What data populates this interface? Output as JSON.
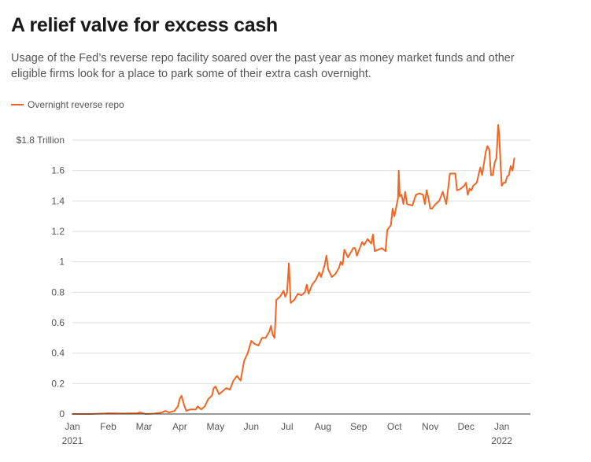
{
  "header": {
    "title": "A relief valve for excess cash",
    "subtitle": "Usage of the Fed’s reverse repo facility soared over the past year as money market funds and other eligible firms look for a place to park some of their extra cash overnight."
  },
  "legend": {
    "label": "Overnight reverse repo"
  },
  "colors": {
    "series": "#f26522",
    "grid": "#dedede",
    "axis": "#333333",
    "text": "#555555"
  },
  "chart_data": {
    "type": "line",
    "title": "A relief valve for excess cash",
    "xlabel": "",
    "ylabel": "",
    "ylim": [
      0,
      1.8
    ],
    "xlim_month_index": [
      0,
      12.35
    ],
    "y_ticks": [
      {
        "value": 0,
        "label": "0"
      },
      {
        "value": 0.2,
        "label": "0.2"
      },
      {
        "value": 0.4,
        "label": "0.4"
      },
      {
        "value": 0.6,
        "label": "0.6"
      },
      {
        "value": 0.8,
        "label": "0.8"
      },
      {
        "value": 1.0,
        "label": "1"
      },
      {
        "value": 1.2,
        "label": "1.2"
      },
      {
        "value": 1.4,
        "label": "1.4"
      },
      {
        "value": 1.6,
        "label": "1.6"
      },
      {
        "value": 1.8,
        "label": "$1.8 Trillion"
      }
    ],
    "x_ticks": [
      {
        "value": 0,
        "label": "Jan",
        "sub": "2021"
      },
      {
        "value": 1,
        "label": "Feb",
        "sub": ""
      },
      {
        "value": 2,
        "label": "Mar",
        "sub": ""
      },
      {
        "value": 3,
        "label": "Apr",
        "sub": ""
      },
      {
        "value": 4,
        "label": "May",
        "sub": ""
      },
      {
        "value": 5,
        "label": "Jun",
        "sub": ""
      },
      {
        "value": 6,
        "label": "Jul",
        "sub": ""
      },
      {
        "value": 7,
        "label": "Aug",
        "sub": ""
      },
      {
        "value": 8,
        "label": "Sep",
        "sub": ""
      },
      {
        "value": 9,
        "label": "Oct",
        "sub": ""
      },
      {
        "value": 10,
        "label": "Nov",
        "sub": ""
      },
      {
        "value": 11,
        "label": "Dec",
        "sub": ""
      },
      {
        "value": 12,
        "label": "Jan",
        "sub": "2022"
      }
    ],
    "series": [
      {
        "name": "Overnight reverse repo",
        "unit": "trillion USD",
        "x_unit": "months since Jan 1, 2021",
        "points": [
          [
            0.0,
            0.0
          ],
          [
            0.5,
            0.0
          ],
          [
            0.9,
            0.003
          ],
          [
            1.0,
            0.005
          ],
          [
            1.4,
            0.003
          ],
          [
            1.8,
            0.005
          ],
          [
            1.9,
            0.01
          ],
          [
            2.05,
            0.0
          ],
          [
            2.3,
            0.003
          ],
          [
            2.5,
            0.01
          ],
          [
            2.6,
            0.02
          ],
          [
            2.7,
            0.01
          ],
          [
            2.85,
            0.02
          ],
          [
            2.95,
            0.05
          ],
          [
            3.0,
            0.1
          ],
          [
            3.05,
            0.12
          ],
          [
            3.12,
            0.06
          ],
          [
            3.18,
            0.02
          ],
          [
            3.3,
            0.03
          ],
          [
            3.45,
            0.03
          ],
          [
            3.5,
            0.05
          ],
          [
            3.6,
            0.03
          ],
          [
            3.7,
            0.05
          ],
          [
            3.8,
            0.1
          ],
          [
            3.9,
            0.12
          ],
          [
            3.95,
            0.17
          ],
          [
            4.0,
            0.18
          ],
          [
            4.1,
            0.13
          ],
          [
            4.2,
            0.15
          ],
          [
            4.3,
            0.17
          ],
          [
            4.4,
            0.16
          ],
          [
            4.5,
            0.22
          ],
          [
            4.6,
            0.25
          ],
          [
            4.7,
            0.22
          ],
          [
            4.8,
            0.35
          ],
          [
            4.9,
            0.4
          ],
          [
            5.0,
            0.48
          ],
          [
            5.1,
            0.46
          ],
          [
            5.2,
            0.45
          ],
          [
            5.3,
            0.5
          ],
          [
            5.4,
            0.5
          ],
          [
            5.5,
            0.54
          ],
          [
            5.55,
            0.58
          ],
          [
            5.6,
            0.52
          ],
          [
            5.65,
            0.5
          ],
          [
            5.7,
            0.75
          ],
          [
            5.8,
            0.77
          ],
          [
            5.9,
            0.81
          ],
          [
            5.95,
            0.77
          ],
          [
            6.0,
            0.8
          ],
          [
            6.05,
            0.99
          ],
          [
            6.1,
            0.73
          ],
          [
            6.2,
            0.75
          ],
          [
            6.3,
            0.79
          ],
          [
            6.4,
            0.78
          ],
          [
            6.5,
            0.8
          ],
          [
            6.55,
            0.85
          ],
          [
            6.6,
            0.79
          ],
          [
            6.7,
            0.85
          ],
          [
            6.8,
            0.88
          ],
          [
            6.9,
            0.93
          ],
          [
            6.95,
            0.9
          ],
          [
            7.05,
            0.98
          ],
          [
            7.1,
            1.04
          ],
          [
            7.15,
            0.95
          ],
          [
            7.25,
            0.9
          ],
          [
            7.35,
            0.92
          ],
          [
            7.45,
            0.96
          ],
          [
            7.5,
            1.0
          ],
          [
            7.55,
            0.98
          ],
          [
            7.6,
            1.08
          ],
          [
            7.7,
            1.03
          ],
          [
            7.8,
            1.07
          ],
          [
            7.85,
            1.09
          ],
          [
            7.9,
            1.09
          ],
          [
            7.95,
            1.04
          ],
          [
            8.05,
            1.1
          ],
          [
            8.1,
            1.13
          ],
          [
            8.15,
            1.11
          ],
          [
            8.25,
            1.15
          ],
          [
            8.35,
            1.12
          ],
          [
            8.4,
            1.18
          ],
          [
            8.45,
            1.07
          ],
          [
            8.55,
            1.08
          ],
          [
            8.65,
            1.09
          ],
          [
            8.75,
            1.07
          ],
          [
            8.8,
            1.21
          ],
          [
            8.9,
            1.24
          ],
          [
            8.95,
            1.35
          ],
          [
            9.0,
            1.3
          ],
          [
            9.05,
            1.36
          ],
          [
            9.1,
            1.42
          ],
          [
            9.12,
            1.6
          ],
          [
            9.15,
            1.43
          ],
          [
            9.2,
            1.44
          ],
          [
            9.25,
            1.38
          ],
          [
            9.3,
            1.46
          ],
          [
            9.35,
            1.38
          ],
          [
            9.5,
            1.37
          ],
          [
            9.6,
            1.44
          ],
          [
            9.7,
            1.45
          ],
          [
            9.8,
            1.44
          ],
          [
            9.85,
            1.38
          ],
          [
            9.9,
            1.47
          ],
          [
            9.95,
            1.42
          ],
          [
            10.0,
            1.35
          ],
          [
            10.05,
            1.35
          ],
          [
            10.15,
            1.38
          ],
          [
            10.25,
            1.4
          ],
          [
            10.35,
            1.46
          ],
          [
            10.45,
            1.38
          ],
          [
            10.55,
            1.58
          ],
          [
            10.7,
            1.58
          ],
          [
            10.75,
            1.47
          ],
          [
            10.85,
            1.48
          ],
          [
            10.95,
            1.5
          ],
          [
            11.0,
            1.52
          ],
          [
            11.05,
            1.44
          ],
          [
            11.1,
            1.48
          ],
          [
            11.15,
            1.47
          ],
          [
            11.2,
            1.5
          ],
          [
            11.3,
            1.52
          ],
          [
            11.4,
            1.62
          ],
          [
            11.45,
            1.57
          ],
          [
            11.55,
            1.72
          ],
          [
            11.6,
            1.76
          ],
          [
            11.65,
            1.74
          ],
          [
            11.7,
            1.57
          ],
          [
            11.75,
            1.57
          ],
          [
            11.8,
            1.65
          ],
          [
            11.85,
            1.68
          ],
          [
            11.9,
            1.9
          ],
          [
            11.93,
            1.83
          ],
          [
            11.97,
            1.62
          ],
          [
            12.0,
            1.5
          ],
          [
            12.05,
            1.52
          ],
          [
            12.1,
            1.52
          ],
          [
            12.15,
            1.56
          ],
          [
            12.2,
            1.57
          ],
          [
            12.25,
            1.63
          ],
          [
            12.3,
            1.6
          ],
          [
            12.35,
            1.68
          ]
        ]
      }
    ],
    "annotations": []
  }
}
